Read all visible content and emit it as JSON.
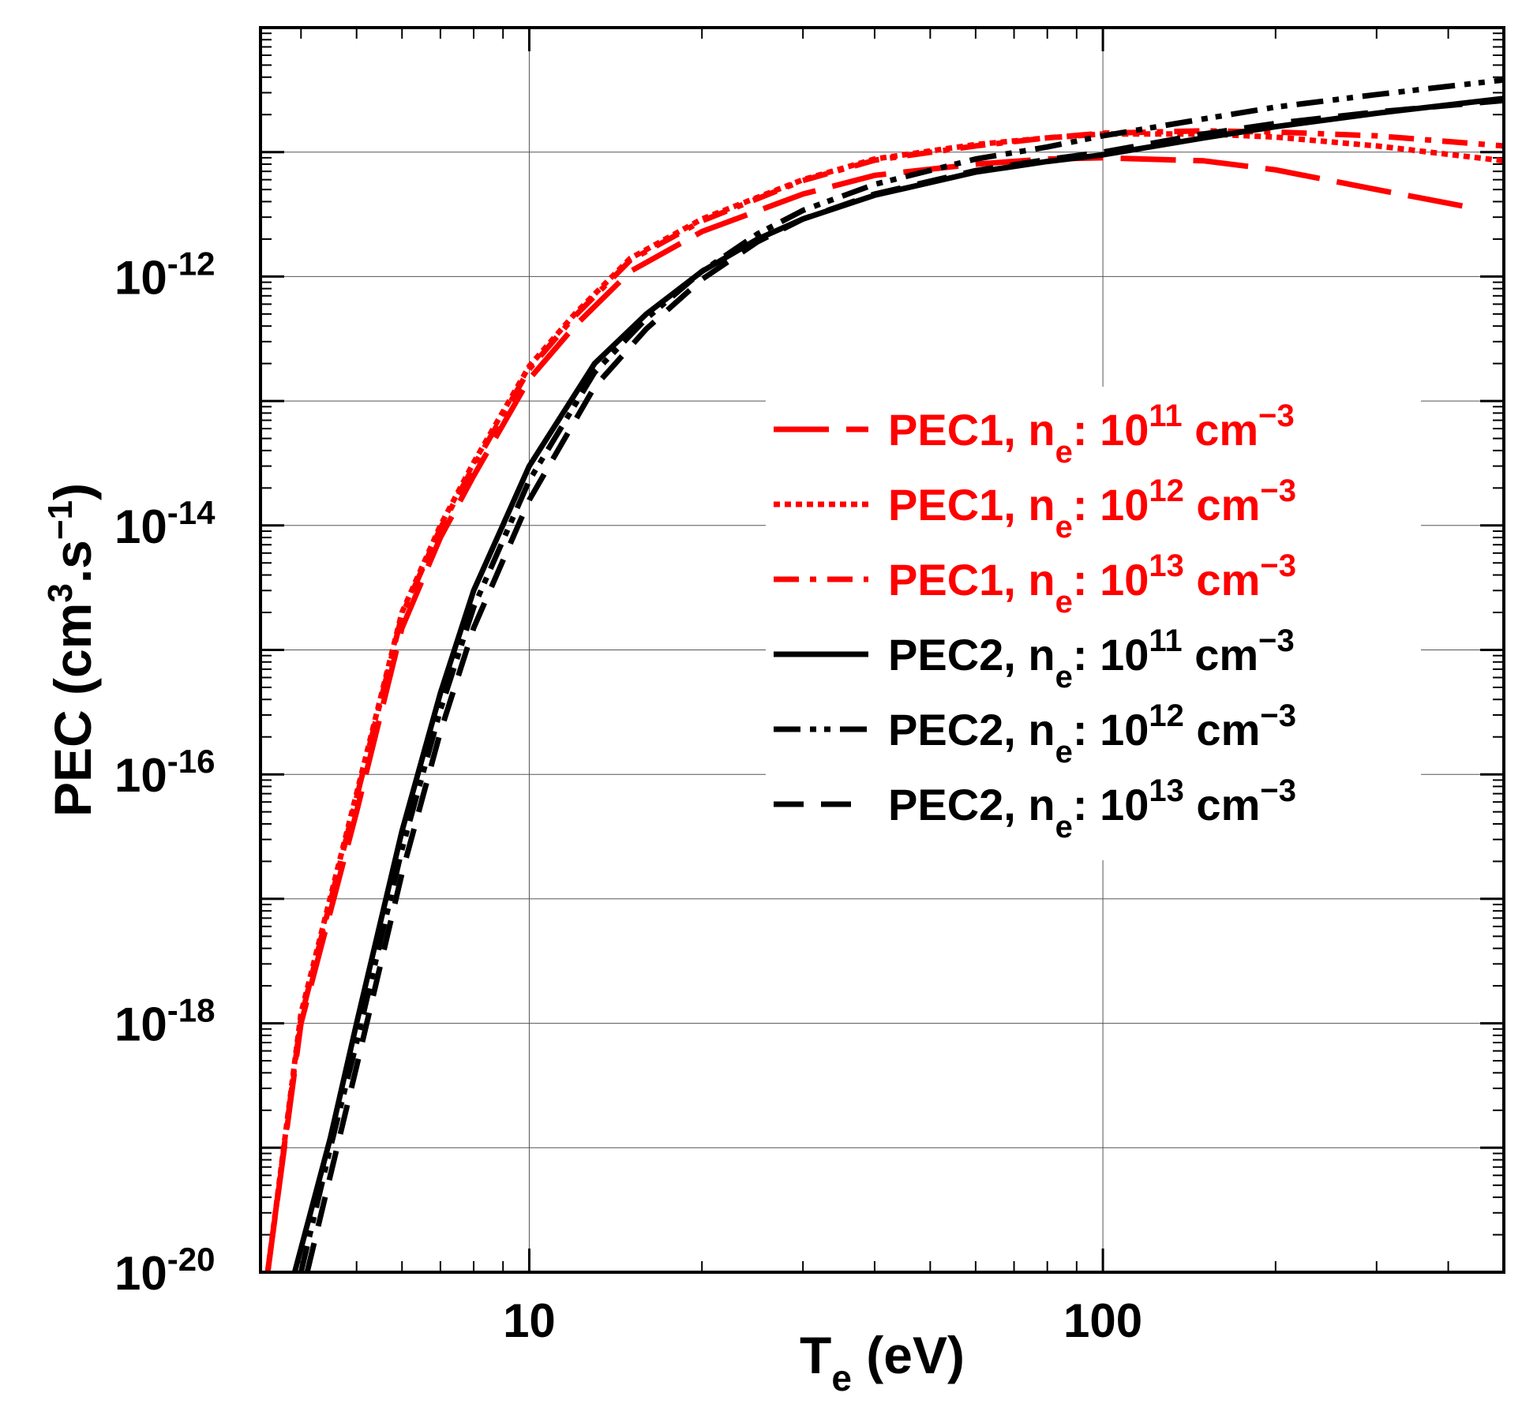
{
  "chart_data": {
    "type": "line",
    "title": "",
    "xlabel": {
      "main": "T",
      "sub": "e",
      "rest": " (eV)"
    },
    "ylabel": {
      "main": "PEC (cm",
      "sup1": "3",
      "mid": ".s",
      "sup2": "−1",
      "end": ")"
    },
    "x_scale": "log",
    "y_scale": "log",
    "xlim": [
      3.4,
      500
    ],
    "ylim": [
      1e-20,
      1e-10
    ],
    "grid": true,
    "legend_position": "center-right",
    "x_ticks": [
      {
        "value": 10,
        "label": "10"
      },
      {
        "value": 100,
        "label": "100"
      }
    ],
    "y_ticks": [
      {
        "value": 1e-12,
        "base": "10",
        "exp": "-12"
      },
      {
        "value": 1e-14,
        "base": "10",
        "exp": "-14"
      },
      {
        "value": 1e-16,
        "base": "10",
        "exp": "-16"
      },
      {
        "value": 1e-18,
        "base": "10",
        "exp": "-18"
      },
      {
        "value": 1e-20,
        "base": "10",
        "exp": "-20"
      }
    ],
    "series": [
      {
        "name": "PEC1, n_e: 10^11 cm^-3",
        "legend": {
          "pre": "PEC1, n",
          "sub": "e",
          "mid": ": 10",
          "sup": "11",
          "post": " cm",
          "sup2": "−3"
        },
        "color": "#ff0000",
        "dash": "long-dash",
        "x": [
          3.5,
          4,
          5,
          6,
          7,
          8,
          10,
          12,
          15,
          20,
          30,
          40,
          60,
          80,
          100,
          150,
          200,
          300,
          450
        ],
        "y": [
          1e-20,
          1e-18,
          5e-17,
          1.5e-15,
          8e-15,
          2.5e-14,
          1.5e-13,
          4e-13,
          1.1e-12,
          2.3e-12,
          4.6e-12,
          6.5e-12,
          8e-12,
          8.8e-12,
          9e-12,
          8.5e-12,
          7.2e-12,
          5e-12,
          3.5e-12
        ]
      },
      {
        "name": "PEC1, n_e: 10^12 cm^-3",
        "legend": {
          "pre": "PEC1, n",
          "sub": "e",
          "mid": ": 10",
          "sup": "12",
          "post": " cm",
          "sup2": "−3"
        },
        "color": "#ff0000",
        "dash": "dotted",
        "x": [
          3.5,
          4,
          5,
          6,
          7,
          8,
          10,
          12,
          15,
          20,
          30,
          40,
          60,
          80,
          100,
          150,
          200,
          300,
          500
        ],
        "y": [
          1e-20,
          1.2e-18,
          7e-17,
          2e-15,
          1e-14,
          3.2e-14,
          1.9e-13,
          5e-13,
          1.4e-12,
          2.9e-12,
          6e-12,
          8.8e-12,
          1.15e-11,
          1.3e-11,
          1.4e-11,
          1.4e-11,
          1.32e-11,
          1.12e-11,
          8.5e-12
        ]
      },
      {
        "name": "PEC1, n_e: 10^13 cm^-3",
        "legend": {
          "pre": "PEC1, n",
          "sub": "e",
          "mid": ": 10",
          "sup": "13",
          "post": " cm",
          "sup2": "−3"
        },
        "color": "#ff0000",
        "dash": "dash-dot",
        "x": [
          3.5,
          4,
          5,
          6,
          7,
          8,
          10,
          12,
          15,
          20,
          30,
          40,
          60,
          80,
          100,
          150,
          200,
          300,
          500
        ],
        "y": [
          1e-20,
          1.1e-18,
          6.5e-17,
          1.9e-15,
          9.5e-15,
          3e-14,
          1.8e-13,
          4.8e-13,
          1.35e-12,
          2.8e-12,
          5.9e-12,
          8.6e-12,
          1.12e-11,
          1.3e-11,
          1.42e-11,
          1.48e-11,
          1.45e-11,
          1.35e-11,
          1.12e-11
        ]
      },
      {
        "name": "PEC2, n_e: 10^11 cm^-3",
        "legend": {
          "pre": "PEC2, n",
          "sub": "e",
          "mid": ": 10",
          "sup": "11",
          "post": " cm",
          "sup2": "−3"
        },
        "color": "#000000",
        "dash": "solid",
        "x": [
          3.9,
          4.5,
          5,
          6,
          7,
          8,
          10,
          13,
          16,
          20,
          25,
          30,
          40,
          60,
          80,
          100,
          150,
          200,
          300,
          500
        ],
        "y": [
          1e-20,
          1.2e-19,
          1e-18,
          3.5e-17,
          4.5e-16,
          3e-15,
          3e-14,
          2e-13,
          5e-13,
          1.1e-12,
          2e-12,
          2.9e-12,
          4.5e-12,
          6.9e-12,
          8.4e-12,
          9.5e-12,
          1.3e-11,
          1.6e-11,
          2.05e-11,
          2.7e-11
        ]
      },
      {
        "name": "PEC2, n_e: 10^12 cm^-3",
        "legend": {
          "pre": "PEC2, n",
          "sub": "e",
          "mid": ": 10",
          "sup": "12",
          "post": " cm",
          "sup2": "−3"
        },
        "color": "#000000",
        "dash": "dash-dot-dot",
        "x": [
          4,
          4.5,
          5,
          6,
          7,
          8,
          10,
          13,
          16,
          20,
          25,
          30,
          40,
          60,
          80,
          100,
          150,
          200,
          300,
          500
        ],
        "y": [
          1e-20,
          1e-19,
          7e-19,
          2.5e-17,
          3.3e-16,
          2.2e-15,
          2.3e-14,
          1.7e-13,
          4.6e-13,
          1.1e-12,
          2.2e-12,
          3.4e-12,
          5.5e-12,
          8.8e-12,
          1.1e-11,
          1.35e-11,
          1.85e-11,
          2.3e-11,
          2.9e-11,
          3.8e-11
        ]
      },
      {
        "name": "PEC2, n_e: 10^13 cm^-3",
        "legend": {
          "pre": "PEC2, n",
          "sub": "e",
          "mid": ": 10",
          "sup": "13",
          "post": " cm",
          "sup2": "−3"
        },
        "color": "#000000",
        "dash": "dashed",
        "x": [
          4.1,
          4.5,
          5,
          6,
          7,
          8,
          10,
          13,
          16,
          20,
          25,
          30,
          40,
          60,
          80,
          100,
          150,
          200,
          300,
          500
        ],
        "y": [
          1e-20,
          6e-20,
          4.5e-19,
          1.6e-17,
          2.2e-16,
          1.5e-15,
          1.6e-14,
          1.3e-13,
          3.8e-13,
          9.5e-13,
          1.9e-12,
          2.9e-12,
          4.6e-12,
          7.1e-12,
          8.7e-12,
          1e-11,
          1.4e-11,
          1.7e-11,
          2.1e-11,
          2.6e-11
        ]
      }
    ]
  }
}
